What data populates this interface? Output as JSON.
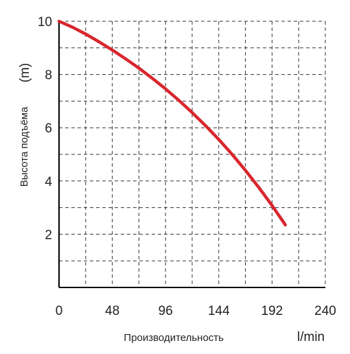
{
  "chart_data": {
    "type": "line",
    "title": "",
    "xlabel": "Производительность",
    "xunit": "l/min",
    "ylabel": "Высота подъёма",
    "yunit": "(m)",
    "xlim": [
      0,
      240
    ],
    "ylim": [
      0,
      10
    ],
    "x_tick_labels": [
      "0",
      "48",
      "96",
      "144",
      "192",
      "240"
    ],
    "y_tick_labels": [
      "2",
      "4",
      "6",
      "8",
      "10"
    ],
    "grid": "dashed",
    "series": [
      {
        "color": "#d9262e",
        "x": [
          0,
          12,
          24,
          36,
          48,
          60,
          72,
          84,
          96,
          108,
          120,
          132,
          144,
          156,
          168,
          180,
          192,
          204
        ],
        "y": [
          10.0,
          9.78,
          9.52,
          9.23,
          8.92,
          8.59,
          8.24,
          7.86,
          7.46,
          7.03,
          6.57,
          6.08,
          5.56,
          5.0,
          4.4,
          3.76,
          3.08,
          2.35
        ]
      }
    ]
  }
}
